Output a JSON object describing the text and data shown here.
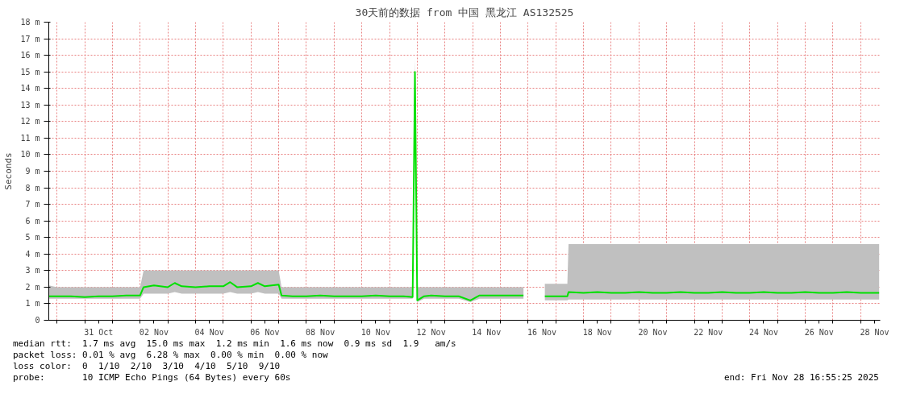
{
  "chart_data": {
    "type": "line",
    "title": "30天前的数据 from 中国 黑龙江 AS132525",
    "ylabel": "Seconds",
    "x": [
      "2025-10-29T17:00",
      "2025-10-30T00:00",
      "2025-10-30T12:00",
      "2025-10-31T00:00",
      "2025-10-31T12:00",
      "2025-11-01T00:00",
      "2025-11-01T12:00",
      "2025-11-02T00:00",
      "2025-11-02T03:00",
      "2025-11-02T12:00",
      "2025-11-03T00:00",
      "2025-11-03T06:00",
      "2025-11-03T12:00",
      "2025-11-04T00:00",
      "2025-11-04T12:00",
      "2025-11-05T00:00",
      "2025-11-05T06:00",
      "2025-11-05T12:00",
      "2025-11-06T00:00",
      "2025-11-06T06:00",
      "2025-11-06T12:00",
      "2025-11-07T00:00",
      "2025-11-07T02:30",
      "2025-11-07T12:00",
      "2025-11-08T00:00",
      "2025-11-08T12:00",
      "2025-11-09T00:00",
      "2025-11-09T12:00",
      "2025-11-10T00:00",
      "2025-11-10T12:00",
      "2025-11-11T00:00",
      "2025-11-11T12:00",
      "2025-11-11T20:00",
      "2025-11-11T22:00",
      "2025-11-12T00:00",
      "2025-11-12T06:00",
      "2025-11-12T12:00",
      "2025-11-13T00:00",
      "2025-11-13T12:00",
      "2025-11-13T22:00",
      "2025-11-14T06:00",
      "2025-11-14T12:00",
      "2025-11-15T00:00",
      "2025-11-15T12:00",
      "2025-11-15T20:00",
      "2025-11-16T08:00",
      "2025-11-16T14:30",
      "2025-11-17T00:00",
      "2025-11-17T10:00",
      "2025-11-17T11:00",
      "2025-11-18T00:00",
      "2025-11-18T12:00",
      "2025-11-19T00:00",
      "2025-11-19T12:00",
      "2025-11-20T00:00",
      "2025-11-20T12:00",
      "2025-11-21T00:00",
      "2025-11-21T12:00",
      "2025-11-22T00:00",
      "2025-11-22T12:00",
      "2025-11-23T00:00",
      "2025-11-23T12:00",
      "2025-11-24T00:00",
      "2025-11-24T12:00",
      "2025-11-25T00:00",
      "2025-11-25T12:00",
      "2025-11-26T00:00",
      "2025-11-26T12:00",
      "2025-11-27T00:00",
      "2025-11-27T12:00",
      "2025-11-28T00:00",
      "2025-11-28T12:00",
      "2025-11-28T16:00"
    ],
    "series": [
      {
        "color": "#00e000",
        "line_style": "solid",
        "values": [
          1.45,
          1.45,
          1.45,
          1.4,
          1.45,
          1.45,
          1.5,
          1.5,
          2.0,
          2.1,
          2.0,
          2.25,
          2.05,
          2.0,
          2.05,
          2.05,
          2.3,
          2.0,
          2.05,
          2.25,
          2.05,
          2.15,
          1.5,
          1.45,
          1.45,
          1.5,
          1.45,
          1.45,
          1.45,
          1.5,
          1.45,
          1.45,
          1.4,
          15.0,
          1.2,
          1.45,
          1.5,
          1.45,
          1.45,
          1.2,
          1.5,
          1.5,
          1.5,
          1.5,
          1.5,
          null,
          1.45,
          1.45,
          1.45,
          1.7,
          1.65,
          1.7,
          1.65,
          1.65,
          1.7,
          1.65,
          1.65,
          1.7,
          1.65,
          1.65,
          1.7,
          1.65,
          1.65,
          1.7,
          1.65,
          1.65,
          1.7,
          1.65,
          1.65,
          1.7,
          1.65,
          1.65,
          1.65
        ],
        "lower": [
          1.3,
          1.3,
          1.3,
          1.3,
          1.3,
          1.3,
          1.3,
          1.3,
          1.6,
          1.6,
          1.6,
          1.7,
          1.6,
          1.6,
          1.6,
          1.6,
          1.7,
          1.6,
          1.6,
          1.7,
          1.6,
          1.6,
          1.3,
          1.3,
          1.3,
          1.3,
          1.3,
          1.3,
          1.3,
          1.3,
          1.3,
          1.3,
          1.3,
          14.4,
          1.1,
          1.3,
          1.3,
          1.3,
          1.3,
          1.1,
          1.3,
          1.3,
          1.3,
          1.3,
          1.3,
          null,
          1.2,
          1.2,
          1.2,
          1.25,
          1.25,
          1.25,
          1.25,
          1.25,
          1.25,
          1.25,
          1.25,
          1.25,
          1.25,
          1.25,
          1.25,
          1.25,
          1.25,
          1.25,
          1.25,
          1.25,
          1.25,
          1.25,
          1.25,
          1.25,
          1.25,
          1.25,
          1.25
        ],
        "upper": [
          2.1,
          2.0,
          2.0,
          2.0,
          2.0,
          2.0,
          2.0,
          2.0,
          3.0,
          3.0,
          3.0,
          3.0,
          3.0,
          3.0,
          3.0,
          3.0,
          3.0,
          3.0,
          3.0,
          3.0,
          3.0,
          3.0,
          2.0,
          2.0,
          2.0,
          2.0,
          2.0,
          2.0,
          2.0,
          2.0,
          2.0,
          2.0,
          2.0,
          15.8,
          2.0,
          2.0,
          2.0,
          2.0,
          2.0,
          2.0,
          2.0,
          2.0,
          2.0,
          2.0,
          2.0,
          null,
          2.2,
          2.2,
          2.2,
          4.6,
          4.6,
          4.6,
          4.6,
          4.6,
          4.6,
          4.6,
          4.6,
          4.6,
          4.6,
          4.6,
          4.6,
          4.6,
          4.6,
          4.6,
          4.6,
          4.6,
          4.6,
          4.6,
          4.6,
          4.6,
          4.6,
          4.6,
          4.6
        ]
      }
    ],
    "xlim": [
      "2025-10-29T16:55",
      "2025-11-28T16:55"
    ],
    "xticks": [
      {
        "value": "2025-10-30T00:00",
        "label": null
      },
      {
        "value": "2025-10-31T00:00",
        "label": null
      },
      {
        "value": "2025-10-31T12:00",
        "label": "31 Oct"
      },
      {
        "value": "2025-11-01T00:00",
        "label": null
      },
      {
        "value": "2025-11-02T00:00",
        "label": null
      },
      {
        "value": "2025-11-02T12:00",
        "label": "02 Nov"
      },
      {
        "value": "2025-11-03T00:00",
        "label": null
      },
      {
        "value": "2025-11-04T00:00",
        "label": null
      },
      {
        "value": "2025-11-04T12:00",
        "label": "04 Nov"
      },
      {
        "value": "2025-11-05T00:00",
        "label": null
      },
      {
        "value": "2025-11-06T00:00",
        "label": null
      },
      {
        "value": "2025-11-06T12:00",
        "label": "06 Nov"
      },
      {
        "value": "2025-11-07T00:00",
        "label": null
      },
      {
        "value": "2025-11-08T00:00",
        "label": null
      },
      {
        "value": "2025-11-08T12:00",
        "label": "08 Nov"
      },
      {
        "value": "2025-11-09T00:00",
        "label": null
      },
      {
        "value": "2025-11-10T00:00",
        "label": null
      },
      {
        "value": "2025-11-10T12:00",
        "label": "10 Nov"
      },
      {
        "value": "2025-11-11T00:00",
        "label": null
      },
      {
        "value": "2025-11-12T00:00",
        "label": null
      },
      {
        "value": "2025-11-12T12:00",
        "label": "12 Nov"
      },
      {
        "value": "2025-11-13T00:00",
        "label": null
      },
      {
        "value": "2025-11-14T00:00",
        "label": null
      },
      {
        "value": "2025-11-14T12:00",
        "label": "14 Nov"
      },
      {
        "value": "2025-11-15T00:00",
        "label": null
      },
      {
        "value": "2025-11-16T00:00",
        "label": null
      },
      {
        "value": "2025-11-16T12:00",
        "label": "16 Nov"
      },
      {
        "value": "2025-11-17T00:00",
        "label": null
      },
      {
        "value": "2025-11-18T00:00",
        "label": null
      },
      {
        "value": "2025-11-18T12:00",
        "label": "18 Nov"
      },
      {
        "value": "2025-11-19T00:00",
        "label": null
      },
      {
        "value": "2025-11-20T00:00",
        "label": null
      },
      {
        "value": "2025-11-20T12:00",
        "label": "20 Nov"
      },
      {
        "value": "2025-11-21T00:00",
        "label": null
      },
      {
        "value": "2025-11-22T00:00",
        "label": null
      },
      {
        "value": "2025-11-22T12:00",
        "label": "22 Nov"
      },
      {
        "value": "2025-11-23T00:00",
        "label": null
      },
      {
        "value": "2025-11-24T00:00",
        "label": null
      },
      {
        "value": "2025-11-24T12:00",
        "label": "24 Nov"
      },
      {
        "value": "2025-11-25T00:00",
        "label": null
      },
      {
        "value": "2025-11-26T00:00",
        "label": null
      },
      {
        "value": "2025-11-26T12:00",
        "label": "26 Nov"
      },
      {
        "value": "2025-11-27T00:00",
        "label": null
      },
      {
        "value": "2025-11-28T00:00",
        "label": null
      },
      {
        "value": "2025-11-28T12:00",
        "label": "28 Nov"
      }
    ],
    "ylim": [
      0,
      18
    ],
    "yticks": [
      0,
      {
        "value": 1,
        "label": "1 m"
      },
      {
        "value": 2,
        "label": "2 m"
      },
      {
        "value": 3,
        "label": "3 m"
      },
      {
        "value": 4,
        "label": "4 m"
      },
      {
        "value": 5,
        "label": "5 m"
      },
      {
        "value": 6,
        "label": "6 m"
      },
      {
        "value": 7,
        "label": "7 m"
      },
      {
        "value": 8,
        "label": "8 m"
      },
      {
        "value": 9,
        "label": "9 m"
      },
      {
        "value": 10,
        "label": "10 m"
      },
      {
        "value": 11,
        "label": "11 m"
      },
      {
        "value": 12,
        "label": "12 m"
      },
      {
        "value": 13,
        "label": "13 m"
      },
      {
        "value": 14,
        "label": "14 m"
      },
      {
        "value": 15,
        "label": "15 m"
      },
      {
        "value": 16,
        "label": "16 m"
      },
      {
        "value": 17,
        "label": "17 m"
      },
      {
        "value": 18,
        "label": "18 m"
      }
    ],
    "grid": true,
    "annotations": [
      "median rtt:  1.7 ms avg  15.0 ms max  1.2 ms min  1.6 ms now  0.9 ms sd  1.9   am/s",
      "packet loss: 0.01 % avg  6.28 % max  0.00 % min  0.00 % now",
      "loss color:  0  1/10  2/10  3/10  4/10  5/10  9/10",
      "probe:       10 ICMP Echo Pings (64 Bytes) every 60s",
      "end: Fri Nov 28 16:55:25 2025"
    ]
  }
}
